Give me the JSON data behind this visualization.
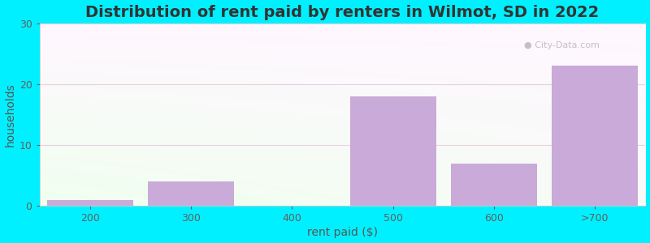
{
  "categories": [
    "200",
    "300",
    "400",
    "500",
    "600",
    ">700"
  ],
  "values": [
    1,
    4,
    0,
    18,
    7,
    23
  ],
  "bar_color": "#c9aad8",
  "bar_edgecolor": "none",
  "title": "Distribution of rent paid by renters in Wilmot, SD in 2022",
  "xlabel": "rent paid ($)",
  "ylabel": "households",
  "ylim": [
    0,
    30
  ],
  "yticks": [
    0,
    10,
    20,
    30
  ],
  "background_outer": "#00f0ff",
  "watermark": "City-Data.com",
  "title_fontsize": 14,
  "axis_label_fontsize": 10,
  "tick_fontsize": 9,
  "bar_width": 0.85,
  "figsize": [
    8.0,
    3.0
  ],
  "dpi": 100
}
